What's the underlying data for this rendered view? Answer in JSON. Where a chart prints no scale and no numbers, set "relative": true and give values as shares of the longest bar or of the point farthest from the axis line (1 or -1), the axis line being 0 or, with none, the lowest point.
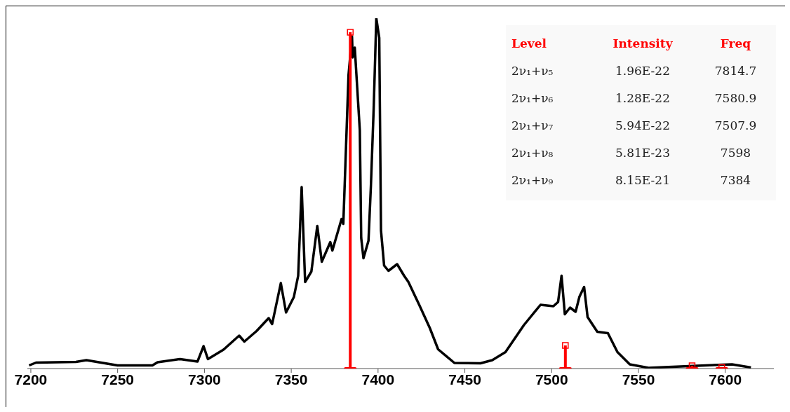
{
  "chart_data": {
    "type": "line",
    "relative": true,
    "xlim": [
      7198,
      7628
    ],
    "xticks": [
      7200,
      7250,
      7300,
      7350,
      7400,
      7450,
      7500,
      7550,
      7600
    ],
    "annotations": [
      "Level",
      "Intensity",
      "Freq",
      "2ν₁+ν₅",
      "1.96E-22",
      "7814.7",
      "2ν₁+ν₆",
      "1.28E-22",
      "7580.9",
      "2ν₁+ν₇",
      "5.94E-22",
      "7507.9",
      "2ν₁+ν₈",
      "5.81E-23",
      "7598",
      "2ν₁+ν₉",
      "8.15E-21",
      "7384"
    ],
    "series": [
      {
        "type": "line",
        "color": "#000000",
        "marker": "none",
        "x": [
          7199,
          7203,
          7226,
          7232,
          7250,
          7270,
          7273,
          7286,
          7296,
          7299.5,
          7302,
          7311,
          7320,
          7323,
          7330,
          7337,
          7339,
          7344,
          7347,
          7351.5,
          7354,
          7356,
          7358,
          7361.6,
          7365,
          7367.6,
          7372.5,
          7373.7,
          7379,
          7380,
          7383,
          7385,
          7385.4,
          7386.6,
          7388,
          7389.5,
          7390.3,
          7391.6,
          7394.5,
          7395.9,
          7397.5,
          7399,
          7400.7,
          7401.7,
          7403.5,
          7406,
          7411,
          7415,
          7417.5,
          7423.7,
          7429.8,
          7434.6,
          7444,
          7459,
          7465.8,
          7473.4,
          7484,
          7493.6,
          7501,
          7503.7,
          7505.7,
          7507.6,
          7510.6,
          7513.8,
          7516,
          7518.7,
          7520.7,
          7526.3,
          7532.4,
          7537.9,
          7545,
          7555.8,
          7579,
          7603.9,
          7614.8
        ],
        "values": [
          0.009,
          0.017,
          0.019,
          0.024,
          0.009,
          0.009,
          0.018,
          0.027,
          0.02,
          0.064,
          0.027,
          0.054,
          0.094,
          0.077,
          0.107,
          0.144,
          0.127,
          0.244,
          0.16,
          0.204,
          0.265,
          0.518,
          0.247,
          0.277,
          0.407,
          0.305,
          0.361,
          0.337,
          0.427,
          0.413,
          0.838,
          0.948,
          0.888,
          0.916,
          0.802,
          0.68,
          0.373,
          0.315,
          0.365,
          0.523,
          0.744,
          1.0,
          0.944,
          0.394,
          0.294,
          0.279,
          0.298,
          0.265,
          0.247,
          0.182,
          0.116,
          0.055,
          0.016,
          0.015,
          0.024,
          0.047,
          0.124,
          0.182,
          0.178,
          0.19,
          0.265,
          0.155,
          0.174,
          0.162,
          0.205,
          0.233,
          0.147,
          0.105,
          0.101,
          0.047,
          0.012,
          0.002,
          0.007,
          0.012,
          0.003
        ]
      },
      {
        "type": "lollipop",
        "color": "#ff0000",
        "marker": "square",
        "x": [
          7384,
          7507.9,
          7580.9,
          7598
        ],
        "values": [
          0.96,
          0.066,
          0.008,
          0.003
        ]
      }
    ]
  }
}
